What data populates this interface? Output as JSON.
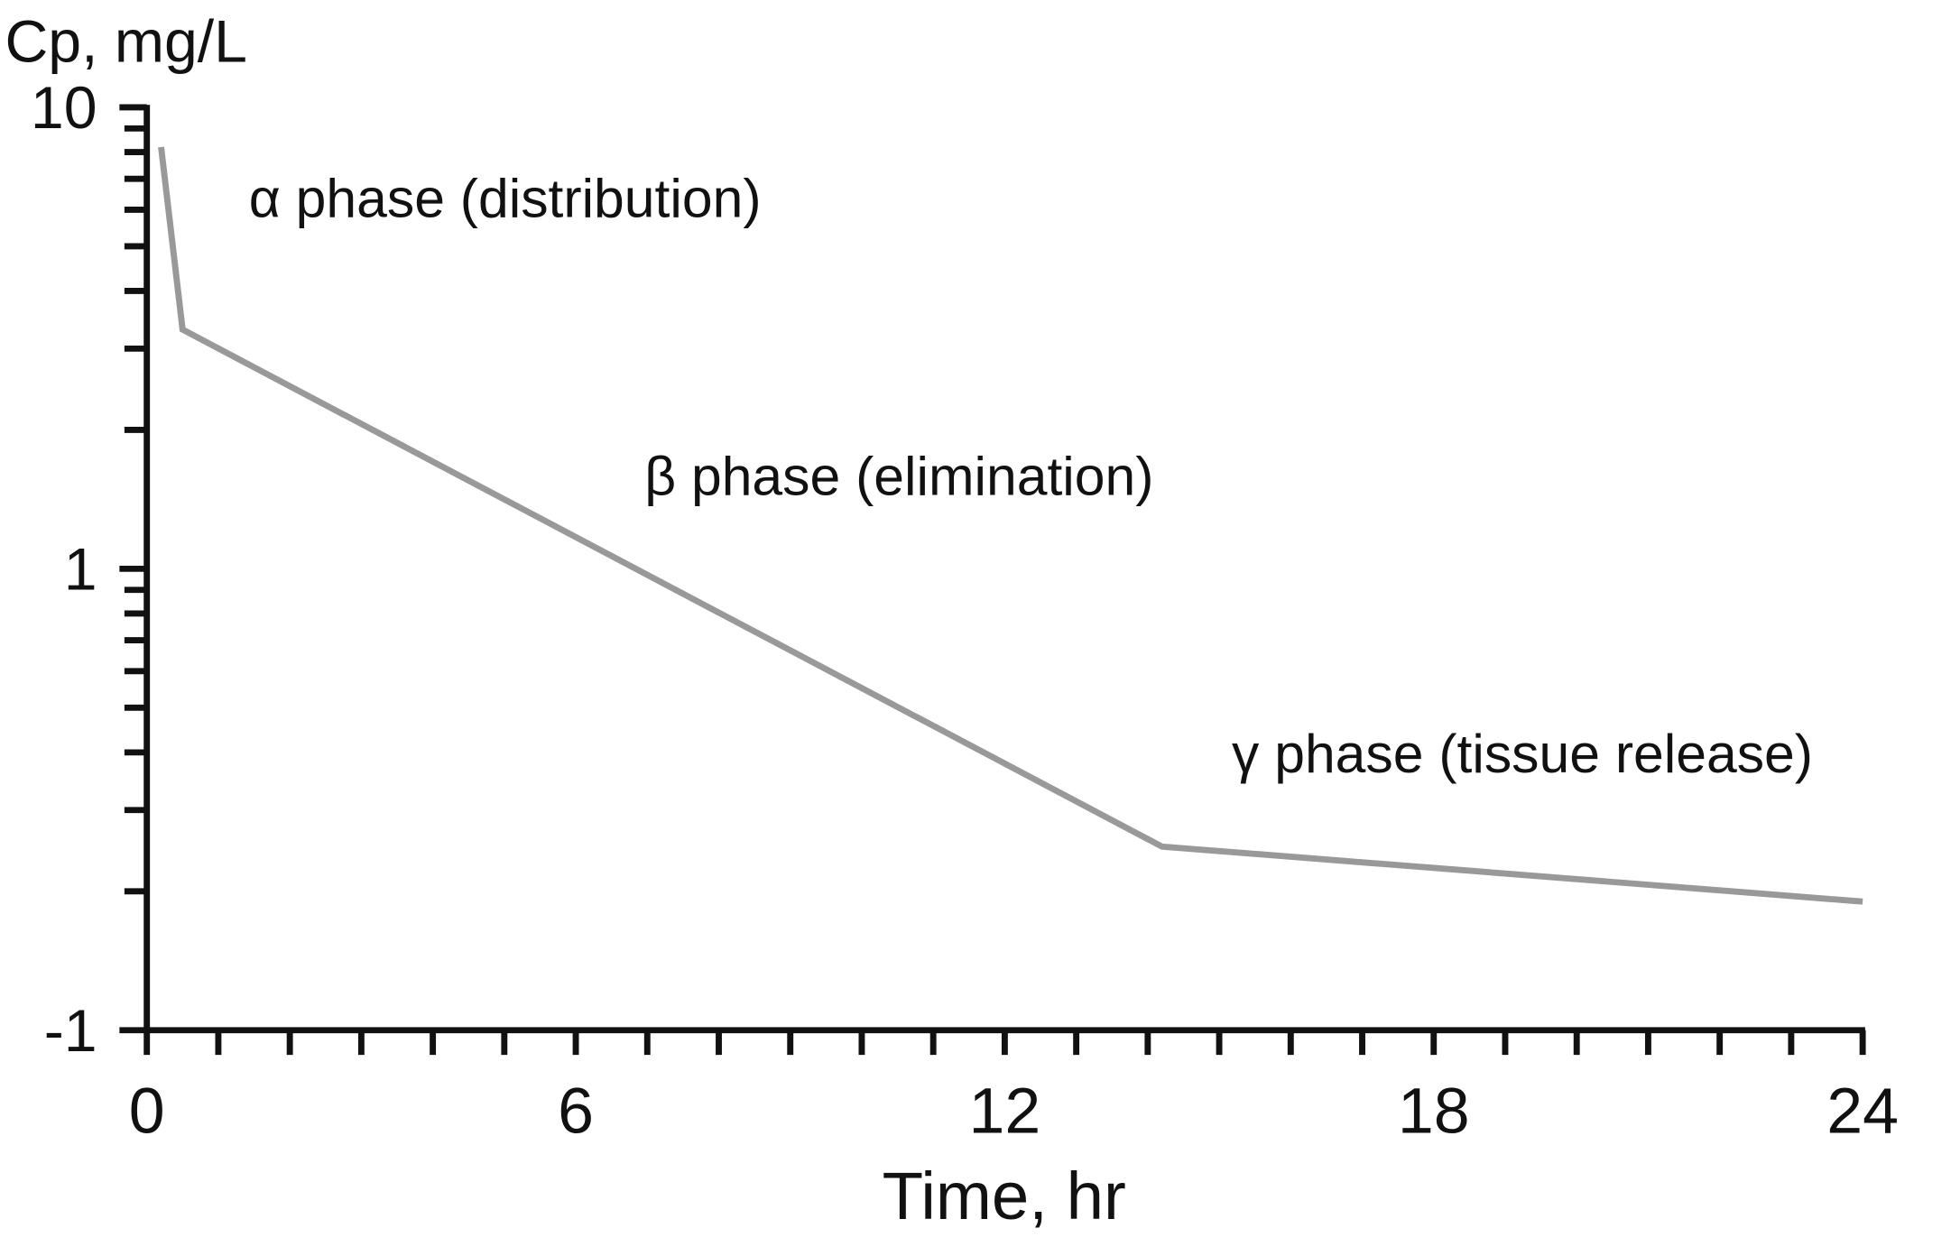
{
  "chart_data": {
    "type": "line",
    "y_label": "Cp, mg/L",
    "x_label": "Time, hr",
    "annotations": [
      "α phase (distribution)",
      "β phase (elimination)",
      "γ phase (tissue release)"
    ],
    "x": [
      0.2,
      0.5,
      14.2,
      24
    ],
    "series": [
      {
        "color": "#999999",
        "values": [
          8.2,
          3.3,
          0.25,
          0.19
        ]
      }
    ],
    "xlim": [
      0,
      24
    ],
    "xticks": [
      0,
      6,
      12,
      18,
      24
    ],
    "xminor_ticks": [
      1,
      2,
      3,
      4,
      5,
      7,
      8,
      9,
      10,
      11,
      13,
      14,
      15,
      16,
      17,
      19,
      20,
      21,
      22,
      23
    ],
    "ylim": [
      0.1,
      10
    ],
    "ylog": true,
    "yticks": [
      10,
      1,
      {
        "value": 0.1,
        "label": "-1"
      }
    ],
    "yminor_ticks": [
      0.2,
      0.3,
      0.4,
      0.5,
      0.6,
      0.7,
      0.8,
      0.9,
      2,
      3,
      4,
      5,
      6,
      7,
      8,
      9
    ],
    "grid": false
  }
}
